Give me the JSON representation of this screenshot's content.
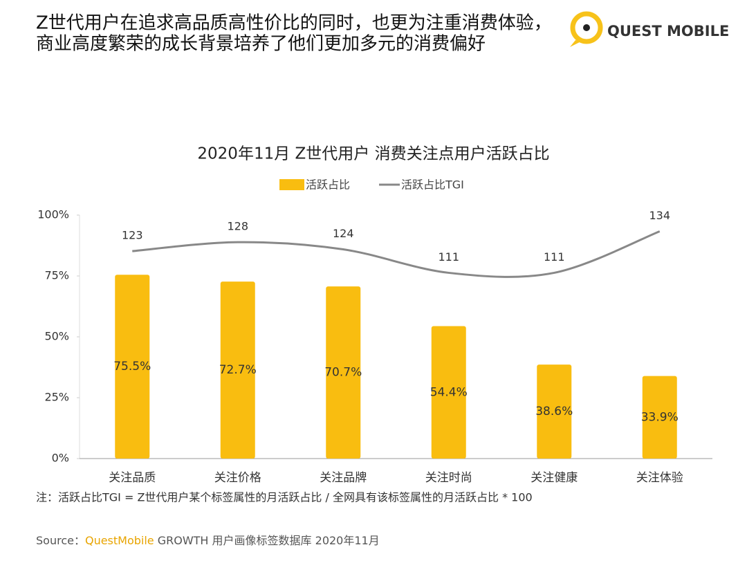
{
  "header": {
    "title_lines": [
      "Z世代用户在追求高品质高性价比的同时，也更为注重消费体验，",
      "商业高度繁荣的成长背景培养了他们更加多元的消费偏好"
    ],
    "logo": "QUEST MOBILE"
  },
  "chart_data": {
    "type": "bar",
    "title": "2020年11月 Z世代用户 消费关注点用户活跃占比",
    "categories": [
      "关注品质",
      "关注价格",
      "关注品牌",
      "关注时尚",
      "关注健康",
      "关注体验"
    ],
    "series": [
      {
        "name": "活跃占比",
        "type": "bar",
        "color": "#f9bd10",
        "values": [
          75.5,
          72.7,
          70.7,
          54.4,
          38.6,
          33.9
        ],
        "value_labels": [
          "75.5%",
          "72.7%",
          "70.7%",
          "54.4%",
          "38.6%",
          "33.9%"
        ]
      },
      {
        "name": "活跃占比TGI",
        "type": "line",
        "axis": "y2",
        "color": "#888888",
        "values": [
          123,
          128,
          124,
          111,
          111,
          134
        ]
      }
    ],
    "ylim": [
      0,
      100
    ],
    "yticks": [
      {
        "value": 0,
        "label": "0%"
      },
      {
        "value": 25,
        "label": "25%"
      },
      {
        "value": 50,
        "label": "50%"
      },
      {
        "value": 75,
        "label": "75%"
      },
      {
        "value": 100,
        "label": "100%"
      }
    ],
    "y2lim": [
      8,
      143
    ],
    "legend": "top",
    "note": "注：活跃占比TGI = Z世代用户某个标签属性的月活跃占比 / 全网具有该标签属性的月活跃占比 * 100",
    "source": {
      "prefix": "Source：",
      "brand": "QuestMobile",
      "text": " GROWTH 用户画像标签数据库 2020年11月"
    }
  }
}
